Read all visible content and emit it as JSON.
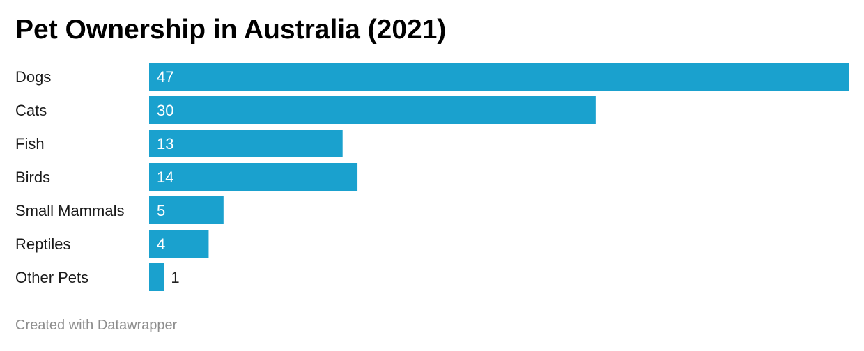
{
  "chart_data": {
    "type": "bar",
    "orientation": "horizontal",
    "title": "Pet Ownership in Australia (2021)",
    "categories": [
      "Dogs",
      "Cats",
      "Fish",
      "Birds",
      "Small Mammals",
      "Reptiles",
      "Other Pets"
    ],
    "values": [
      47,
      30,
      13,
      14,
      5,
      4,
      1
    ],
    "data_labels": [
      "47",
      "30",
      "13",
      "14",
      "5",
      "4",
      "1"
    ],
    "xlim": [
      0,
      47
    ],
    "grid": false,
    "legend": "none",
    "bar_color": "#1aa1ce",
    "inside_label_color": "#ffffff",
    "outside_label_color": "#222222"
  },
  "footer": {
    "credit": "Created with Datawrapper"
  }
}
